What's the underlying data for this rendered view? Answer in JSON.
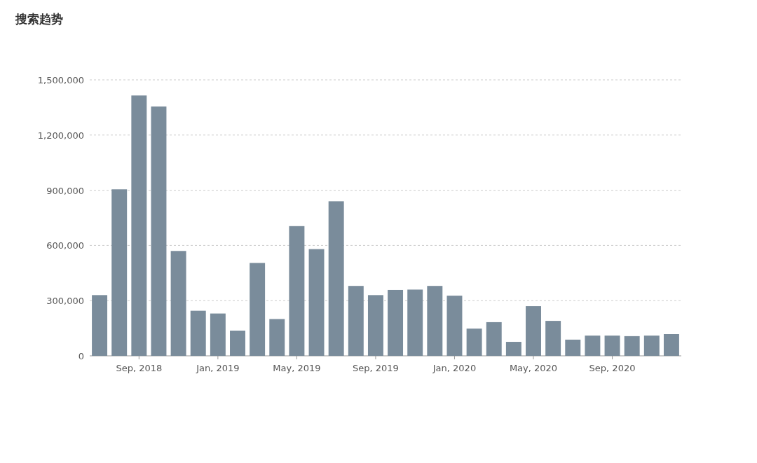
{
  "chart_data": {
    "type": "bar",
    "title": "搜索趋势",
    "categories": [
      null,
      null,
      "Sep, 2018",
      null,
      null,
      null,
      "Jan, 2019",
      null,
      null,
      null,
      "May, 2019",
      null,
      null,
      null,
      "Sep, 2019",
      null,
      null,
      null,
      "Jan, 2020",
      null,
      null,
      null,
      "May, 2020",
      null,
      null,
      null,
      "Sep, 2020",
      null,
      null,
      null
    ],
    "values": [
      330000,
      905000,
      1415000,
      1355000,
      570000,
      245000,
      230000,
      137000,
      505000,
      200000,
      705000,
      580000,
      840000,
      380000,
      330000,
      358000,
      360000,
      380000,
      327000,
      148000,
      183000,
      76000,
      270000,
      190000,
      88000,
      110000,
      110000,
      107000,
      110000,
      118000
    ],
    "color": "#7a8c9b",
    "ylim": [
      0,
      1500000
    ],
    "yticks": [
      {
        "value": 0,
        "label": "0"
      },
      {
        "value": 300000,
        "label": "300,000"
      },
      {
        "value": 600000,
        "label": "600,000"
      },
      {
        "value": 900000,
        "label": "900,000"
      },
      {
        "value": 1200000,
        "label": "1,200,000"
      },
      {
        "value": 1500000,
        "label": "1,500,000"
      }
    ],
    "grid": "y"
  }
}
